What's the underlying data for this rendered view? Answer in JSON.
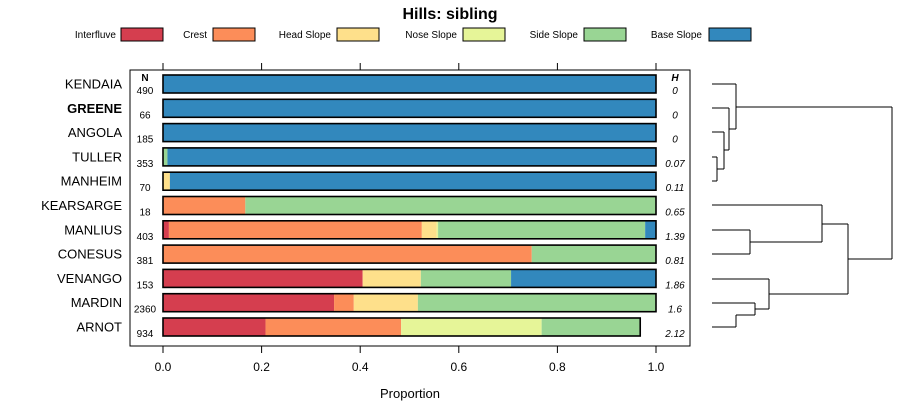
{
  "chart_data": {
    "type": "bar",
    "stacked": true,
    "orientation": "horizontal",
    "title": "Hills: sibling",
    "xlabel": "Proportion",
    "xlim": [
      0,
      1
    ],
    "xticks": [
      "0.0",
      "0.2",
      "0.4",
      "0.6",
      "0.8",
      "1.0"
    ],
    "n_header": "N",
    "h_header": "H",
    "legend_position": "top",
    "highlight_category": "GREENE",
    "categories": [
      "KENDAIA",
      "GREENE",
      "ANGOLA",
      "TULLER",
      "MANHEIM",
      "KEARSARGE",
      "MANLIUS",
      "CONESUS",
      "VENANGO",
      "MARDIN",
      "ARNOT"
    ],
    "n": [
      "490",
      "66",
      "185",
      "353",
      "70",
      "18",
      "403",
      "381",
      "153",
      "2360",
      "934"
    ],
    "h": [
      "0",
      "0",
      "0",
      "0.07",
      "0.11",
      "0.65",
      "1.39",
      "0.81",
      "1.86",
      "1.6",
      "2.12"
    ],
    "series": [
      {
        "name": "Interfluve",
        "color": "#d53e4f",
        "values": [
          0,
          0,
          0,
          0,
          0,
          0,
          0.012,
          0,
          0.405,
          0.347,
          0.208
        ]
      },
      {
        "name": "Crest",
        "color": "#fc8d59",
        "values": [
          0,
          0,
          0,
          0,
          0,
          0.167,
          0.513,
          0.748,
          0,
          0.04,
          0.275
        ]
      },
      {
        "name": "Head Slope",
        "color": "#fee08b",
        "values": [
          0,
          0,
          0,
          0,
          0.014,
          0,
          0.03,
          0,
          0.118,
          0.13,
          0
        ]
      },
      {
        "name": "Nose Slope",
        "color": "#e6f598",
        "values": [
          0,
          0,
          0,
          0,
          0,
          0,
          0.003,
          0,
          0,
          0,
          0.285
        ]
      },
      {
        "name": "Side Slope",
        "color": "#99d594",
        "values": [
          0,
          0,
          0,
          0.009,
          0,
          0.833,
          0.42,
          0.252,
          0.183,
          0.483,
          0.2
        ]
      },
      {
        "name": "Base Slope",
        "color": "#3288bd",
        "values": [
          1,
          1,
          1,
          0.991,
          0.986,
          0,
          0.022,
          0,
          0.294,
          0,
          0
        ]
      }
    ]
  }
}
